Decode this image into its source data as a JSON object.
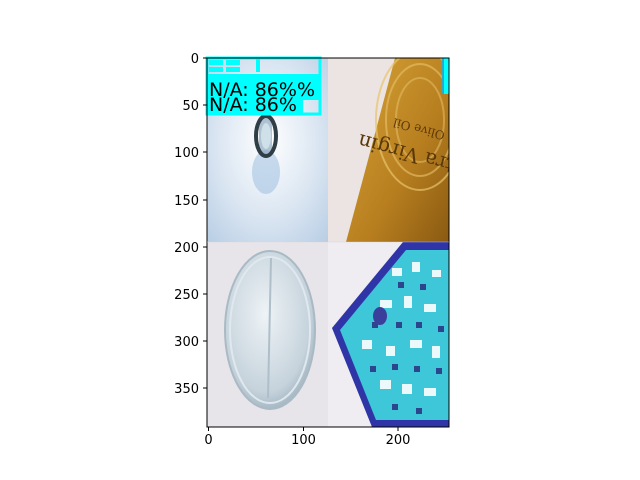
{
  "axes": {
    "x_ticks": [
      "0",
      "100",
      "200"
    ],
    "y_ticks": [
      "0",
      "50",
      "100",
      "150",
      "200",
      "250",
      "300",
      "350"
    ]
  },
  "detections": [
    {
      "label": "N/A: 86%%",
      "color": "#00ffff"
    },
    {
      "label": "N/A: 86%",
      "color": "#00ffff"
    }
  ],
  "tiles": [
    {
      "name": "tile-bottle-top",
      "colors": [
        "#f1f4f8",
        "#cdddee",
        "#8fb2d6"
      ]
    },
    {
      "name": "tile-olive-oil-label",
      "colors": [
        "#e9e2df",
        "#c08a25",
        "#7a5010"
      ]
    },
    {
      "name": "tile-pill",
      "colors": [
        "#e7e4ea",
        "#c4d0d8",
        "#8ea5b3"
      ]
    },
    {
      "name": "tile-printed-sheet",
      "colors": [
        "#f0eef2",
        "#3fc3d6",
        "#2b2f9a"
      ]
    }
  ]
}
